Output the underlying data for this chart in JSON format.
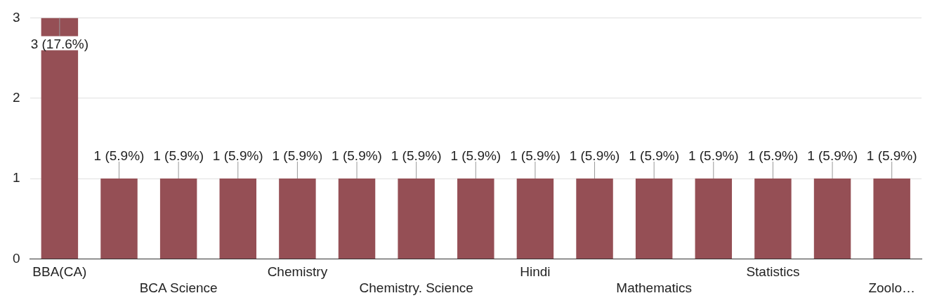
{
  "chart_data": {
    "type": "bar",
    "categories": [
      "BBA(CA)",
      null,
      "BCA Science",
      null,
      "Chemistry",
      null,
      "Chemistry. Science",
      null,
      "Hindi",
      null,
      "Mathematics",
      null,
      "Statistics",
      null,
      "Zoolo…"
    ],
    "values": [
      3,
      1,
      1,
      1,
      1,
      1,
      1,
      1,
      1,
      1,
      1,
      1,
      1,
      1,
      1
    ],
    "value_labels": [
      "3 (17.6%)",
      "1 (5.9%)",
      "1 (5.9%)",
      "1 (5.9%)",
      "1 (5.9%)",
      "1 (5.9%)",
      "1 (5.9%)",
      "1 (5.9%)",
      "1 (5.9%)",
      "1 (5.9%)",
      "1 (5.9%)",
      "1 (5.9%)",
      "1 (5.9%)",
      "1 (5.9%)",
      "1 (5.9%)"
    ],
    "color": "#954f55",
    "ylim": [
      0,
      3
    ],
    "yticks": [
      0,
      1,
      2,
      3
    ],
    "grid": "y",
    "legend": false
  }
}
